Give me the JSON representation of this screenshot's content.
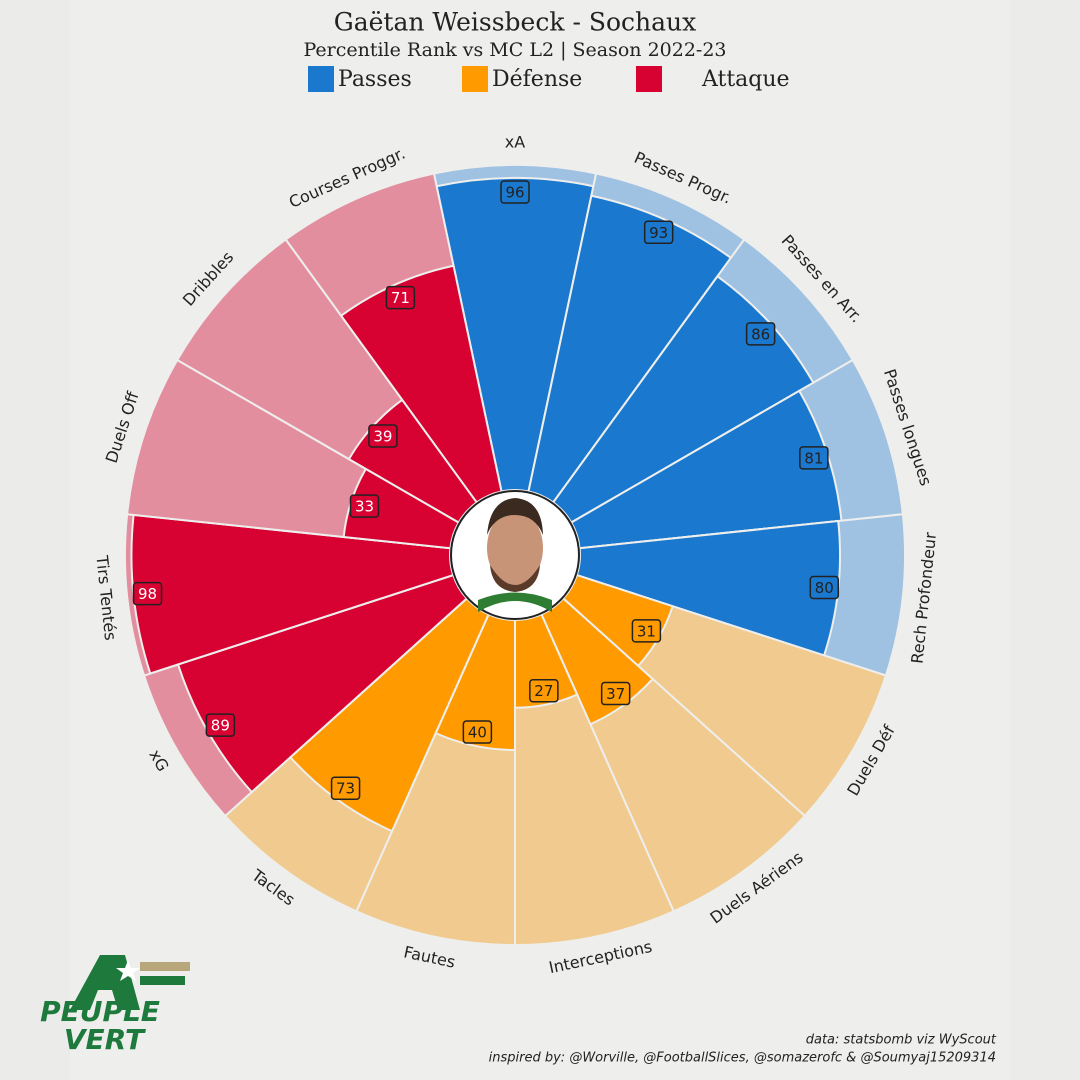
{
  "chart_data": {
    "type": "pizza",
    "title": "Gaëtan Weissbeck - Sochaux",
    "subtitle": "Percentile Rank vs MC L2 | Season 2022-23",
    "ylim": [
      0,
      100
    ],
    "series": [
      {
        "name": "Passes",
        "color": "#1a78cf",
        "background_color": "#9fc2e3",
        "categories": [
          "xA",
          "Passes Progr.",
          "Passes en Arr.",
          "Passes longues",
          "Rech Profondeur"
        ],
        "values": [
          96,
          93,
          86,
          81,
          80
        ]
      },
      {
        "name": "Défense",
        "color": "#ff9a00",
        "background_color": "#f1ca8f",
        "categories": [
          "Duels Déf",
          "Duels Aériens",
          "Interceptions",
          "Fautes",
          "Tacles"
        ],
        "values": [
          31,
          37,
          27,
          40,
          73
        ]
      },
      {
        "name": "Attaque",
        "color": "#d70232",
        "background_color": "#e38e9f",
        "categories": [
          "xG",
          "Tirs Tentés",
          "Duels Off",
          "Dribbles",
          "Courses Proggr."
        ],
        "values": [
          89,
          98,
          33,
          39,
          71
        ]
      }
    ],
    "credits": [
      "data: statsbomb viz WyScout",
      "inspired by: @Worville, @FootballSlices, @somazerofc & @Soumyaj15209314"
    ],
    "logo": [
      "PEUPLE",
      "VERT"
    ]
  }
}
